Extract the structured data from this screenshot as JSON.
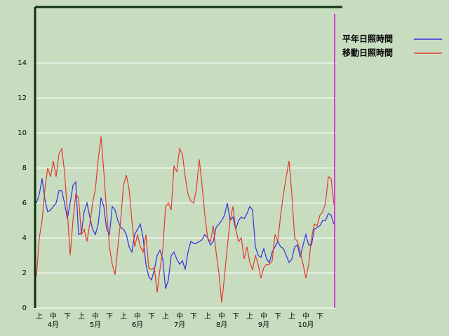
{
  "chart_data": {
    "type": "line",
    "categories": [
      null,
      "上",
      null,
      null,
      null,
      null,
      "中",
      null,
      null,
      null,
      null,
      "下",
      null,
      null,
      null,
      null,
      "上",
      null,
      null,
      null,
      null,
      "中",
      null,
      null,
      null,
      null,
      "下",
      null,
      null,
      null,
      null,
      "上",
      null,
      null,
      null,
      null,
      "中",
      null,
      null,
      null,
      null,
      "下",
      null,
      null,
      null,
      null,
      "上",
      null,
      null,
      null,
      null,
      "中",
      null,
      null,
      null,
      null,
      "下",
      null,
      null,
      null,
      null,
      "上",
      null,
      null,
      null,
      null,
      "中",
      null,
      null,
      null,
      null,
      "下",
      null,
      null,
      null,
      null,
      "上",
      null,
      null,
      null,
      null,
      "中",
      null,
      null,
      null,
      null,
      "下",
      null,
      null,
      null,
      null,
      "上",
      null,
      null,
      null,
      null,
      "中",
      null,
      null,
      null,
      null,
      "下",
      null,
      null,
      null,
      null,
      null
    ],
    "month_labels": [
      "4月",
      "5月",
      "6月",
      "7月",
      "8月",
      "9月",
      "10月"
    ],
    "series": [
      {
        "name": "平年日照時間",
        "color": "#3030e0",
        "values": [
          6.0,
          6.5,
          7.4,
          6.2,
          5.5,
          5.6,
          5.8,
          6.0,
          6.7,
          6.7,
          6.0,
          5.1,
          6.0,
          7.0,
          7.2,
          4.2,
          4.3,
          5.5,
          6.0,
          5.2,
          4.5,
          4.2,
          4.8,
          6.3,
          5.8,
          4.5,
          4.2,
          5.8,
          5.6,
          5.0,
          4.6,
          4.5,
          4.2,
          3.5,
          3.2,
          4.2,
          4.5,
          4.8,
          4.0,
          2.5,
          1.8,
          1.6,
          2.2,
          3.0,
          3.3,
          2.8,
          1.1,
          1.6,
          3.0,
          3.2,
          2.8,
          2.5,
          2.7,
          2.2,
          3.2,
          3.8,
          3.7,
          3.7,
          3.8,
          3.9,
          4.2,
          4.0,
          3.6,
          3.8,
          4.6,
          4.8,
          5.0,
          5.3,
          6.0,
          5.0,
          5.2,
          4.5,
          5.0,
          5.2,
          5.1,
          5.4,
          5.8,
          5.6,
          3.5,
          3.0,
          2.9,
          3.4,
          2.8,
          2.6,
          3.2,
          3.5,
          3.8,
          3.5,
          3.4,
          3.0,
          2.6,
          2.8,
          3.5,
          3.6,
          2.9,
          3.6,
          4.2,
          3.6,
          3.6,
          4.5,
          4.6,
          4.7,
          5.0,
          5.0,
          5.4,
          5.3,
          4.8
        ]
      },
      {
        "name": "移動日照時間",
        "color": "#e03c2c",
        "values": [
          1.8,
          4.0,
          5.0,
          6.8,
          8.0,
          7.5,
          8.4,
          7.5,
          8.8,
          9.1,
          7.8,
          5.5,
          3.0,
          5.0,
          6.5,
          6.3,
          4.2,
          4.5,
          3.8,
          4.8,
          6.0,
          6.8,
          8.5,
          9.8,
          7.8,
          5.5,
          3.5,
          2.5,
          1.9,
          3.5,
          5.0,
          7.0,
          7.6,
          6.8,
          5.0,
          3.5,
          4.2,
          3.5,
          3.2,
          4.2,
          2.3,
          2.2,
          2.3,
          0.9,
          2.2,
          3.3,
          5.8,
          6.0,
          5.6,
          8.1,
          7.8,
          9.1,
          8.8,
          7.5,
          6.5,
          6.1,
          6.0,
          6.8,
          8.5,
          7.0,
          5.3,
          4.0,
          3.8,
          4.7,
          3.2,
          2.0,
          0.3,
          1.8,
          3.5,
          5.0,
          5.8,
          4.5,
          3.8,
          4.0,
          2.8,
          3.5,
          2.6,
          2.2,
          3.0,
          2.5,
          1.7,
          2.3,
          2.5,
          2.5,
          2.7,
          4.2,
          3.8,
          5.3,
          6.5,
          7.5,
          8.4,
          6.5,
          4.0,
          3.8,
          3.2,
          2.5,
          1.7,
          2.5,
          4.0,
          4.8,
          4.7,
          5.3,
          5.5,
          6.0,
          7.5,
          7.4,
          5.9
        ]
      }
    ],
    "ylim": [
      0,
      17.2
    ],
    "yticks": [
      0,
      2,
      4,
      6,
      8,
      10,
      12,
      14
    ],
    "grid": true
  }
}
